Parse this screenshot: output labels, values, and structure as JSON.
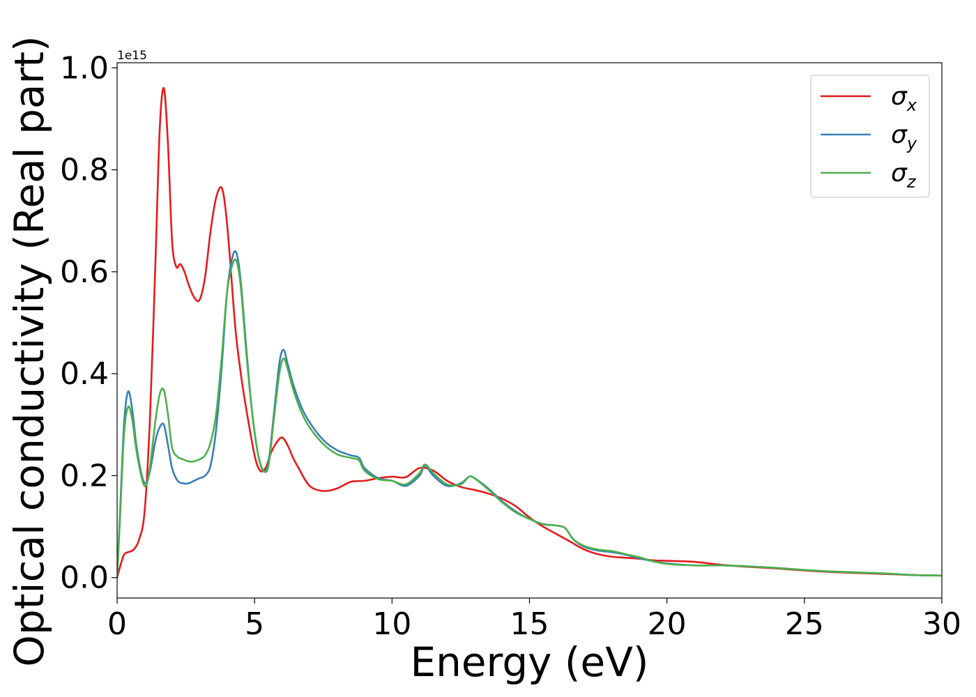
{
  "chart_data": {
    "type": "line",
    "title": "",
    "xlabel": "Energy (eV)",
    "ylabel": "Optical conductivity (Real part)",
    "y_offset_label": "1e15",
    "xlim": [
      0,
      30
    ],
    "ylim": [
      -0.04,
      1.01
    ],
    "xticks": [
      0,
      5,
      10,
      15,
      20,
      25,
      30
    ],
    "xtick_labels": [
      "0",
      "5",
      "10",
      "15",
      "20",
      "25",
      "30"
    ],
    "yticks": [
      0.0,
      0.2,
      0.4,
      0.6,
      0.8,
      1.0
    ],
    "ytick_labels": [
      "0.0",
      "0.2",
      "0.4",
      "0.6",
      "0.8",
      "1.0"
    ],
    "grid": false,
    "legend_position": "top-right",
    "series": [
      {
        "name": "σx",
        "symbol": "σ",
        "sub": "x",
        "color": "#e41a1c",
        "x": [
          0,
          0.1,
          0.25,
          0.4,
          0.6,
          0.8,
          1.0,
          1.2,
          1.4,
          1.55,
          1.7,
          1.85,
          2.0,
          2.15,
          2.3,
          2.45,
          2.6,
          2.8,
          3.0,
          3.2,
          3.4,
          3.6,
          3.8,
          3.95,
          4.1,
          4.3,
          4.5,
          4.7,
          5.0,
          5.2,
          5.4,
          5.6,
          5.8,
          6.0,
          6.2,
          6.4,
          6.6,
          7.0,
          7.5,
          8.0,
          8.5,
          9.0,
          9.5,
          10.0,
          10.5,
          11.0,
          11.5,
          12.0,
          12.5,
          13.0,
          13.5,
          14.0,
          14.5,
          15.0,
          15.5,
          16.0,
          16.5,
          17.0,
          17.5,
          18.0,
          18.5,
          19.0,
          19.5,
          20.0,
          21.0,
          22.0,
          23.0,
          24.0,
          25.0,
          26.0,
          27.0,
          28.0,
          29.0,
          30.0
        ],
        "values": [
          0.0,
          0.02,
          0.045,
          0.05,
          0.055,
          0.075,
          0.13,
          0.32,
          0.63,
          0.88,
          0.96,
          0.85,
          0.66,
          0.61,
          0.615,
          0.6,
          0.575,
          0.55,
          0.545,
          0.59,
          0.68,
          0.745,
          0.765,
          0.72,
          0.63,
          0.49,
          0.4,
          0.33,
          0.24,
          0.21,
          0.215,
          0.245,
          0.265,
          0.275,
          0.26,
          0.235,
          0.215,
          0.18,
          0.17,
          0.175,
          0.188,
          0.19,
          0.195,
          0.198,
          0.197,
          0.215,
          0.21,
          0.19,
          0.178,
          0.172,
          0.165,
          0.155,
          0.14,
          0.118,
          0.1,
          0.085,
          0.07,
          0.055,
          0.046,
          0.041,
          0.039,
          0.037,
          0.034,
          0.033,
          0.031,
          0.025,
          0.021,
          0.018,
          0.014,
          0.011,
          0.009,
          0.007,
          0.005,
          0.004
        ]
      },
      {
        "name": "σy",
        "symbol": "σ",
        "sub": "y",
        "color": "#377eb8",
        "x": [
          0,
          0.1,
          0.25,
          0.4,
          0.55,
          0.7,
          0.9,
          1.05,
          1.2,
          1.4,
          1.55,
          1.7,
          1.85,
          2.0,
          2.2,
          2.4,
          2.6,
          2.8,
          3.0,
          3.2,
          3.4,
          3.6,
          3.8,
          4.0,
          4.2,
          4.35,
          4.5,
          4.7,
          4.9,
          5.1,
          5.3,
          5.5,
          5.7,
          5.9,
          6.05,
          6.2,
          6.4,
          6.7,
          7.0,
          7.5,
          8.0,
          8.5,
          8.8,
          9.0,
          9.5,
          10.0,
          10.5,
          11.0,
          11.2,
          11.5,
          12.0,
          12.5,
          12.8,
          13.0,
          13.5,
          14.0,
          14.5,
          15.0,
          15.5,
          16.0,
          16.3,
          16.6,
          17.0,
          17.5,
          18.0,
          18.5,
          19.0,
          19.5,
          20.0,
          21.0,
          22.0,
          23.0,
          24.0,
          25.0,
          26.0,
          27.0,
          28.0,
          29.0,
          30.0
        ],
        "values": [
          0.0,
          0.12,
          0.3,
          0.365,
          0.33,
          0.26,
          0.2,
          0.185,
          0.21,
          0.27,
          0.295,
          0.3,
          0.26,
          0.215,
          0.19,
          0.185,
          0.185,
          0.19,
          0.195,
          0.2,
          0.22,
          0.29,
          0.41,
          0.56,
          0.63,
          0.635,
          0.58,
          0.45,
          0.33,
          0.25,
          0.21,
          0.225,
          0.32,
          0.42,
          0.447,
          0.42,
          0.38,
          0.335,
          0.305,
          0.27,
          0.25,
          0.24,
          0.235,
          0.215,
          0.195,
          0.19,
          0.18,
          0.2,
          0.22,
          0.2,
          0.18,
          0.185,
          0.198,
          0.195,
          0.175,
          0.15,
          0.13,
          0.115,
          0.105,
          0.102,
          0.097,
          0.075,
          0.06,
          0.053,
          0.05,
          0.045,
          0.038,
          0.032,
          0.028,
          0.024,
          0.024,
          0.022,
          0.019,
          0.015,
          0.012,
          0.01,
          0.008,
          0.005,
          0.004
        ]
      },
      {
        "name": "σz",
        "symbol": "σ",
        "sub": "z",
        "color": "#4daf4a",
        "x": [
          0,
          0.1,
          0.25,
          0.4,
          0.55,
          0.7,
          0.9,
          1.05,
          1.2,
          1.4,
          1.55,
          1.7,
          1.85,
          2.0,
          2.2,
          2.4,
          2.6,
          2.8,
          3.0,
          3.2,
          3.4,
          3.6,
          3.8,
          4.0,
          4.2,
          4.35,
          4.5,
          4.7,
          4.9,
          5.1,
          5.3,
          5.5,
          5.7,
          5.9,
          6.05,
          6.2,
          6.4,
          6.7,
          7.0,
          7.5,
          8.0,
          8.5,
          8.8,
          9.0,
          9.5,
          10.0,
          10.5,
          11.0,
          11.2,
          11.5,
          12.0,
          12.5,
          12.8,
          13.0,
          13.5,
          14.0,
          14.5,
          15.0,
          15.5,
          16.0,
          16.3,
          16.6,
          17.0,
          17.5,
          18.0,
          18.5,
          19.0,
          19.5,
          20.0,
          21.0,
          22.0,
          23.0,
          24.0,
          25.0,
          26.0,
          27.0,
          28.0,
          29.0,
          30.0
        ],
        "values": [
          0.0,
          0.11,
          0.28,
          0.335,
          0.31,
          0.25,
          0.195,
          0.18,
          0.22,
          0.31,
          0.36,
          0.368,
          0.32,
          0.255,
          0.237,
          0.232,
          0.228,
          0.228,
          0.232,
          0.24,
          0.265,
          0.32,
          0.43,
          0.56,
          0.615,
          0.62,
          0.57,
          0.44,
          0.33,
          0.25,
          0.212,
          0.218,
          0.31,
          0.4,
          0.43,
          0.41,
          0.37,
          0.325,
          0.295,
          0.262,
          0.242,
          0.235,
          0.23,
          0.21,
          0.193,
          0.19,
          0.183,
          0.205,
          0.222,
          0.205,
          0.183,
          0.183,
          0.198,
          0.195,
          0.173,
          0.148,
          0.128,
          0.115,
          0.105,
          0.102,
          0.097,
          0.075,
          0.062,
          0.055,
          0.052,
          0.046,
          0.04,
          0.032,
          0.027,
          0.024,
          0.024,
          0.022,
          0.019,
          0.015,
          0.012,
          0.01,
          0.008,
          0.005,
          0.004
        ]
      }
    ]
  }
}
